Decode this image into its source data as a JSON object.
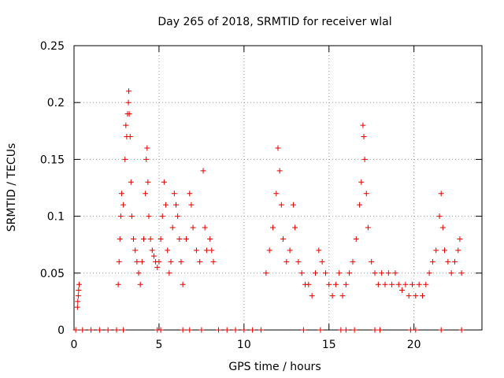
{
  "chart_data": {
    "type": "scatter",
    "title": "Day 265 of 2018, SRMTID for receiver wlal",
    "xlabel": "GPS time / hours",
    "ylabel": "SRMTID / TECUs",
    "xlim": [
      0,
      24
    ],
    "ylim": [
      0,
      0.25
    ],
    "x_ticks": [
      0,
      5,
      10,
      15,
      20
    ],
    "y_ticks": [
      0,
      0.05,
      0.1,
      0.15,
      0.2,
      0.25
    ],
    "x_tick_labels": [
      "0",
      "5",
      "10",
      "15",
      "20"
    ],
    "y_tick_labels": [
      "0",
      "0.05",
      "0.1",
      "0.15",
      "0.2",
      "0.25"
    ],
    "grid": true,
    "marker": "+",
    "series": [
      {
        "name": "SRMTID",
        "color": "#e00000",
        "points": [
          [
            0.2,
            0.02
          ],
          [
            0.22,
            0.025
          ],
          [
            0.25,
            0.03
          ],
          [
            0.27,
            0.035
          ],
          [
            0.3,
            0.04
          ],
          [
            2.6,
            0.04
          ],
          [
            2.65,
            0.06
          ],
          [
            2.7,
            0.08
          ],
          [
            2.75,
            0.1
          ],
          [
            2.8,
            0.12
          ],
          [
            2.9,
            0.11
          ],
          [
            3.0,
            0.15
          ],
          [
            3.05,
            0.18
          ],
          [
            3.1,
            0.17
          ],
          [
            3.15,
            0.19
          ],
          [
            3.2,
            0.2
          ],
          [
            3.22,
            0.21
          ],
          [
            3.25,
            0.19
          ],
          [
            3.3,
            0.17
          ],
          [
            3.35,
            0.13
          ],
          [
            3.4,
            0.1
          ],
          [
            3.5,
            0.08
          ],
          [
            3.6,
            0.07
          ],
          [
            3.7,
            0.06
          ],
          [
            3.8,
            0.05
          ],
          [
            3.9,
            0.04
          ],
          [
            4.0,
            0.06
          ],
          [
            4.1,
            0.08
          ],
          [
            4.2,
            0.12
          ],
          [
            4.25,
            0.15
          ],
          [
            4.3,
            0.16
          ],
          [
            4.35,
            0.13
          ],
          [
            4.4,
            0.1
          ],
          [
            4.5,
            0.08
          ],
          [
            4.6,
            0.07
          ],
          [
            4.7,
            0.065
          ],
          [
            4.8,
            0.06
          ],
          [
            4.9,
            0.055
          ],
          [
            5.0,
            0.06
          ],
          [
            5.1,
            0.08
          ],
          [
            5.2,
            0.1
          ],
          [
            5.3,
            0.13
          ],
          [
            5.4,
            0.11
          ],
          [
            5.5,
            0.07
          ],
          [
            5.6,
            0.05
          ],
          [
            5.7,
            0.06
          ],
          [
            5.8,
            0.09
          ],
          [
            5.9,
            0.12
          ],
          [
            6.0,
            0.11
          ],
          [
            6.1,
            0.1
          ],
          [
            6.2,
            0.08
          ],
          [
            6.3,
            0.06
          ],
          [
            6.4,
            0.04
          ],
          [
            6.6,
            0.08
          ],
          [
            6.8,
            0.12
          ],
          [
            6.9,
            0.11
          ],
          [
            7.0,
            0.09
          ],
          [
            7.2,
            0.07
          ],
          [
            7.4,
            0.06
          ],
          [
            7.6,
            0.14
          ],
          [
            7.7,
            0.09
          ],
          [
            7.8,
            0.07
          ],
          [
            8.0,
            0.08
          ],
          [
            8.1,
            0.07
          ],
          [
            8.2,
            0.06
          ],
          [
            11.3,
            0.05
          ],
          [
            11.5,
            0.07
          ],
          [
            11.7,
            0.09
          ],
          [
            11.9,
            0.12
          ],
          [
            12.0,
            0.16
          ],
          [
            12.1,
            0.14
          ],
          [
            12.2,
            0.11
          ],
          [
            12.3,
            0.08
          ],
          [
            12.5,
            0.06
          ],
          [
            12.7,
            0.07
          ],
          [
            12.9,
            0.11
          ],
          [
            13.0,
            0.09
          ],
          [
            13.2,
            0.06
          ],
          [
            13.4,
            0.05
          ],
          [
            13.6,
            0.04
          ],
          [
            13.8,
            0.04
          ],
          [
            14.0,
            0.03
          ],
          [
            14.2,
            0.05
          ],
          [
            14.4,
            0.07
          ],
          [
            14.6,
            0.06
          ],
          [
            14.8,
            0.05
          ],
          [
            15.0,
            0.04
          ],
          [
            15.2,
            0.03
          ],
          [
            15.4,
            0.04
          ],
          [
            15.6,
            0.05
          ],
          [
            15.8,
            0.03
          ],
          [
            16.0,
            0.04
          ],
          [
            16.2,
            0.05
          ],
          [
            16.4,
            0.06
          ],
          [
            16.6,
            0.08
          ],
          [
            16.8,
            0.11
          ],
          [
            16.9,
            0.13
          ],
          [
            17.0,
            0.18
          ],
          [
            17.05,
            0.17
          ],
          [
            17.1,
            0.15
          ],
          [
            17.2,
            0.12
          ],
          [
            17.3,
            0.09
          ],
          [
            17.5,
            0.06
          ],
          [
            17.7,
            0.05
          ],
          [
            17.9,
            0.04
          ],
          [
            18.1,
            0.05
          ],
          [
            18.3,
            0.04
          ],
          [
            18.5,
            0.05
          ],
          [
            18.7,
            0.04
          ],
          [
            18.9,
            0.05
          ],
          [
            19.1,
            0.04
          ],
          [
            19.3,
            0.035
          ],
          [
            19.5,
            0.04
          ],
          [
            19.7,
            0.03
          ],
          [
            19.9,
            0.04
          ],
          [
            20.1,
            0.03
          ],
          [
            20.3,
            0.04
          ],
          [
            20.5,
            0.03
          ],
          [
            20.7,
            0.04
          ],
          [
            20.9,
            0.05
          ],
          [
            21.1,
            0.06
          ],
          [
            21.3,
            0.07
          ],
          [
            21.5,
            0.1
          ],
          [
            21.6,
            0.12
          ],
          [
            21.7,
            0.09
          ],
          [
            21.8,
            0.07
          ],
          [
            22.0,
            0.06
          ],
          [
            22.2,
            0.05
          ],
          [
            22.4,
            0.06
          ],
          [
            22.6,
            0.07
          ],
          [
            22.7,
            0.08
          ],
          [
            22.8,
            0.05
          ],
          [
            0.1,
            0.0
          ],
          [
            0.5,
            0.0
          ],
          [
            1.0,
            0.0
          ],
          [
            1.5,
            0.0
          ],
          [
            2.0,
            0.0
          ],
          [
            2.5,
            0.0
          ],
          [
            2.9,
            0.0
          ],
          [
            4.9,
            0.0
          ],
          [
            5.1,
            0.0
          ],
          [
            6.4,
            0.0
          ],
          [
            6.8,
            0.0
          ],
          [
            7.5,
            0.0
          ],
          [
            8.5,
            0.0
          ],
          [
            9.0,
            0.0
          ],
          [
            9.5,
            0.0
          ],
          [
            10.0,
            0.0
          ],
          [
            10.5,
            0.0
          ],
          [
            11.0,
            0.0
          ],
          [
            13.5,
            0.0
          ],
          [
            14.5,
            0.0
          ],
          [
            15.7,
            0.0
          ],
          [
            16.0,
            0.0
          ],
          [
            16.5,
            0.0
          ],
          [
            17.7,
            0.0
          ],
          [
            18.0,
            0.0
          ],
          [
            19.8,
            0.0
          ],
          [
            20.1,
            0.0
          ],
          [
            21.6,
            0.0
          ],
          [
            22.8,
            0.0
          ]
        ]
      }
    ]
  }
}
